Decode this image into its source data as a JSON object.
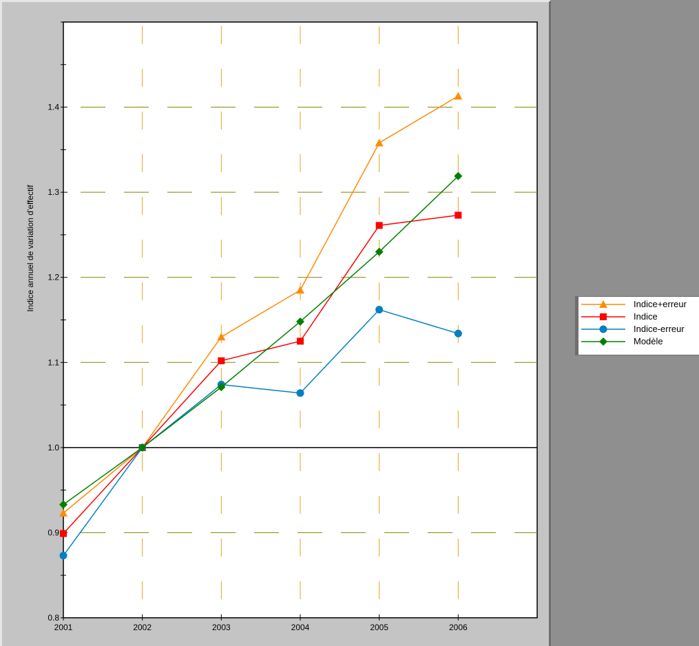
{
  "chart_data": {
    "type": "line",
    "title": "",
    "xlabel": "",
    "ylabel": "Indice annuel de variation d'effectif",
    "categories": [
      "2001",
      "2002",
      "2003",
      "2004",
      "2005",
      "2006"
    ],
    "xlim": [
      2001,
      2007
    ],
    "ylim": [
      0.8,
      1.5
    ],
    "yticks": [
      0.8,
      0.9,
      1.0,
      1.1,
      1.2,
      1.3,
      1.4
    ],
    "ytick_labels": [
      "0.8",
      "0.9",
      "1.0",
      "1.1",
      "1.2",
      "1.3",
      "1.4"
    ],
    "reference_line": 1.0,
    "grid": true,
    "legend_position": "right",
    "series": [
      {
        "name": "Indice+erreur",
        "color": "#ff8c00",
        "marker": "triangle",
        "values": [
          0.923,
          1.0,
          1.13,
          1.185,
          1.358,
          1.413
        ]
      },
      {
        "name": "Indice",
        "color": "#ff0000",
        "marker": "square",
        "values": [
          0.899,
          1.0,
          1.102,
          1.125,
          1.261,
          1.273
        ]
      },
      {
        "name": "Indice-erreur",
        "color": "#0080c0",
        "marker": "circle",
        "values": [
          0.873,
          1.0,
          1.074,
          1.064,
          1.162,
          1.134
        ]
      },
      {
        "name": "Modèle",
        "color": "#008000",
        "marker": "diamond",
        "values": [
          0.933,
          1.0,
          1.071,
          1.148,
          1.23,
          1.319
        ]
      }
    ]
  }
}
